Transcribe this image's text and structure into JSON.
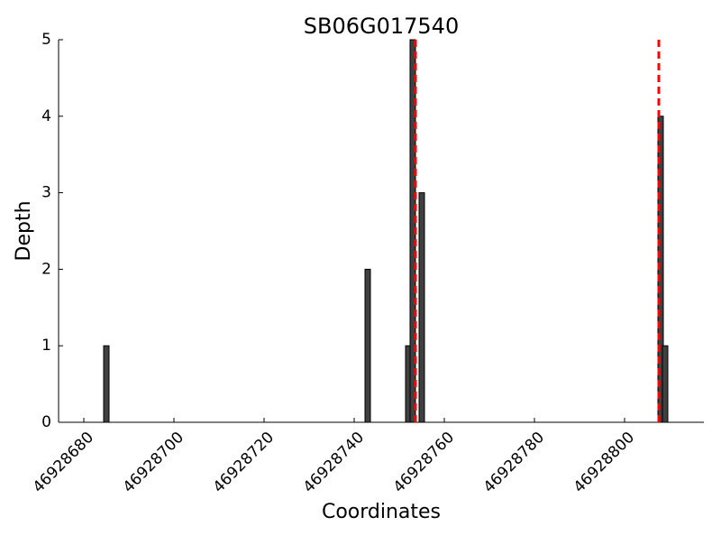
{
  "chart_data": {
    "type": "bar",
    "title": "SB06G017540",
    "xlabel": "Coordinates",
    "ylabel": "Depth",
    "x": [
      46928685,
      46928743,
      46928752,
      46928753,
      46928755,
      46928808,
      46928809
    ],
    "values": [
      1,
      2,
      1,
      5,
      3,
      4,
      1
    ],
    "color": "#404040",
    "xlim": [
      46928674.4,
      46928817.6
    ],
    "xticks": [
      46928680,
      46928700,
      46928720,
      46928740,
      46928760,
      46928780,
      46928800
    ],
    "ylim": [
      0,
      5
    ],
    "yticks": [
      0,
      1,
      2,
      3,
      4,
      5
    ],
    "vlines": [
      46928753.6,
      46928807.6
    ],
    "vline_color": "#ff0000"
  }
}
